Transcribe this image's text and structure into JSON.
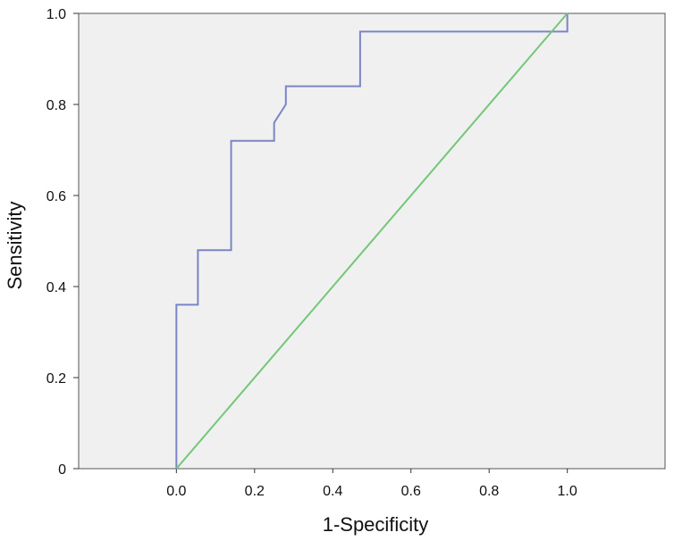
{
  "chart_data": {
    "type": "line",
    "title": "",
    "xlabel": "1-Specificity",
    "ylabel": "Sensitivity",
    "xlim": [
      -0.25,
      1.25
    ],
    "ylim": [
      0,
      1.0
    ],
    "x_ticks": [
      "0.0",
      "0.2",
      "0.4",
      "0.6",
      "0.8",
      "1.0"
    ],
    "x_tick_values": [
      0.0,
      0.2,
      0.4,
      0.6,
      0.8,
      1.0
    ],
    "y_ticks": [
      "0",
      "0.2",
      "0.4",
      "0.6",
      "0.8",
      "1.0"
    ],
    "y_tick_values": [
      0,
      0.2,
      0.4,
      0.6,
      0.8,
      1.0
    ],
    "grid": false,
    "background": "#f0f0f0",
    "series": [
      {
        "color": "#7a86c4",
        "x": [
          0.0,
          0.0,
          0.055,
          0.055,
          0.14,
          0.14,
          0.25,
          0.25,
          0.28,
          0.28,
          0.47,
          0.47,
          1.0,
          1.0
        ],
        "y": [
          0.0,
          0.36,
          0.36,
          0.48,
          0.48,
          0.72,
          0.72,
          0.76,
          0.8,
          0.84,
          0.84,
          0.96,
          0.96,
          1.0
        ]
      },
      {
        "color": "#73c777",
        "x": [
          0.0,
          1.0
        ],
        "y": [
          0.0,
          1.0
        ]
      }
    ]
  }
}
